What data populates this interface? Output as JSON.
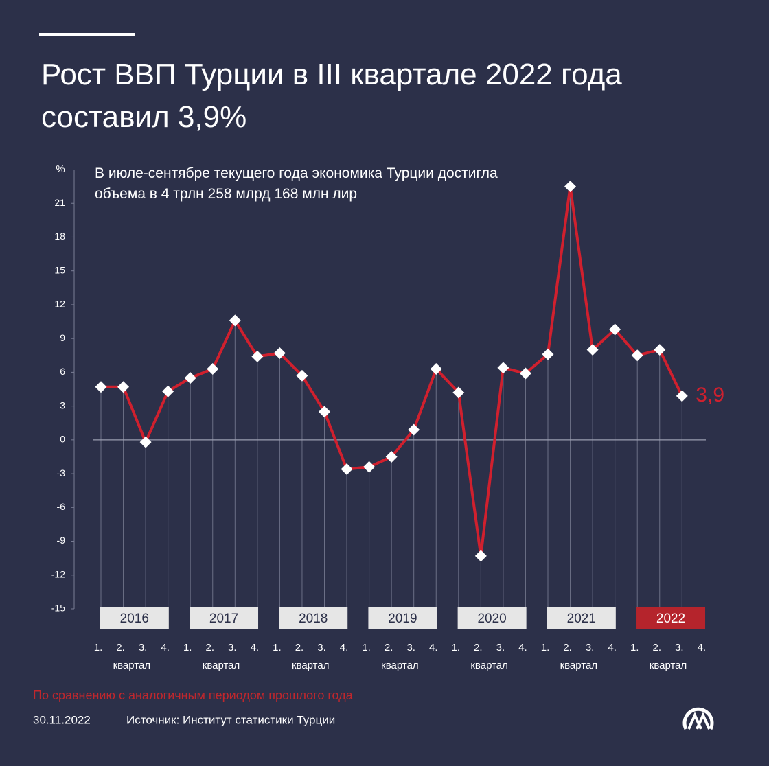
{
  "chart_data": {
    "type": "line",
    "title": "Рост ВВП Турции в III квартале 2022 года составил 3,9%",
    "subtitle": "В июле-сентябре текущего года экономика Турции достигла объема в 4 трлн 258 млрд 168 млн лир",
    "y_unit": "%",
    "years": [
      "2016",
      "2017",
      "2018",
      "2019",
      "2020",
      "2021",
      "2022"
    ],
    "quarters": [
      "1.",
      "2.",
      "3.",
      "4."
    ],
    "quarter_word": "квартал",
    "series": [
      {
        "name": "Рост ВВП",
        "color": "#d0202e",
        "values": [
          4.7,
          4.7,
          -0.2,
          4.3,
          5.5,
          6.3,
          10.6,
          7.4,
          7.7,
          5.7,
          2.5,
          -2.6,
          -2.4,
          -1.5,
          0.9,
          6.3,
          4.2,
          -10.3,
          6.4,
          5.9,
          7.6,
          22.5,
          8.0,
          9.8,
          7.5,
          8.0,
          3.9,
          null
        ],
        "value_labels": [
          null,
          null,
          null,
          null,
          null,
          null,
          null,
          null,
          null,
          null,
          null,
          null,
          null,
          null,
          null,
          null,
          null,
          null,
          null,
          null,
          null,
          null,
          null,
          null,
          null,
          null,
          "3,9",
          null
        ]
      }
    ],
    "ylim": [
      -15,
      24
    ],
    "yticks": [
      21,
      18,
      15,
      12,
      9,
      6,
      3,
      0,
      -3,
      -6,
      -9,
      -12,
      -15
    ],
    "highlight_year_color": "#b5242c",
    "note": "По сравнению с аналогичным периодом прошлого года",
    "date": "30.11.2022",
    "source": "Источник: Институт статистики Турции"
  }
}
